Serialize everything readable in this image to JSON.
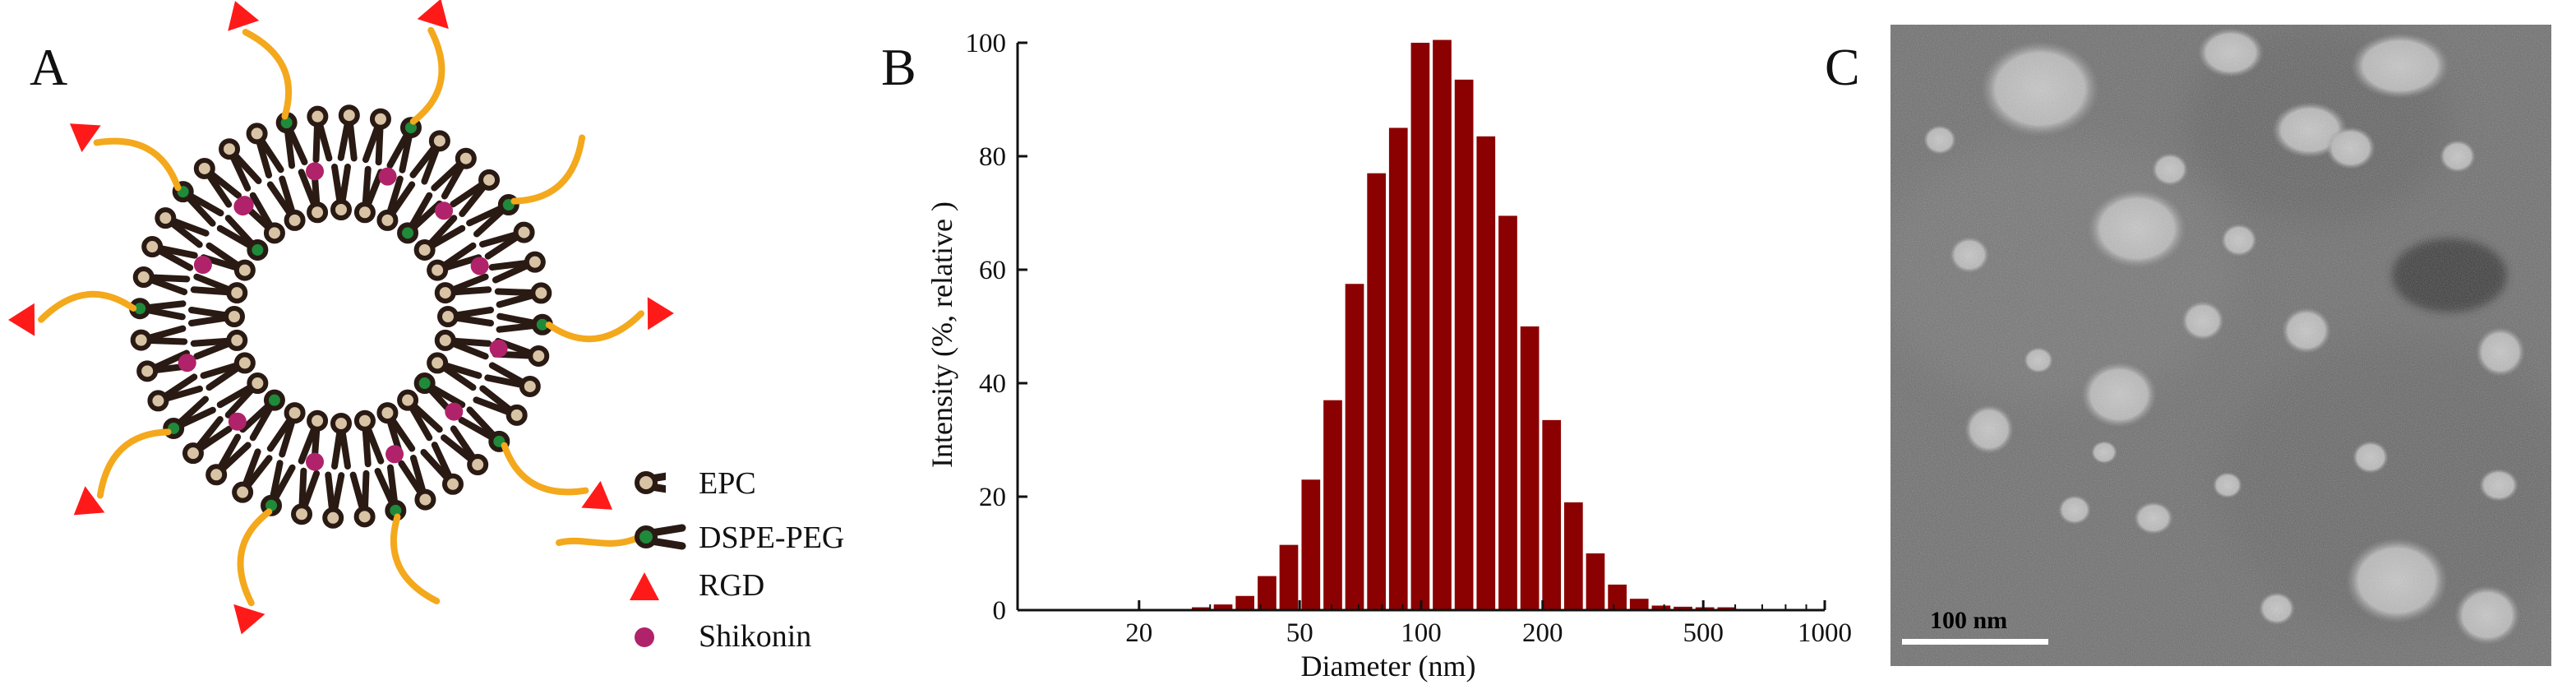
{
  "figure": {
    "panel_a": {
      "letter": "A"
    },
    "panel_b": {
      "letter": "B"
    },
    "panel_c": {
      "letter": "C"
    }
  },
  "legend": {
    "items": [
      {
        "label": "EPC",
        "icon": "epc-lipid-icon"
      },
      {
        "label": "DSPE-PEG",
        "icon": "dspe-peg-icon"
      },
      {
        "label": "RGD",
        "icon": "red-triangle-icon"
      },
      {
        "label": "Shikonin",
        "icon": "purple-dot-icon"
      }
    ]
  },
  "colors": {
    "lipid_dark": "#2a1a14",
    "lipid_head": "#d8c3a5",
    "peg_head": "#1f8a3a",
    "peg_chain": "#f4a81c",
    "rgd": "#ff1a1a",
    "shikonin": "#b0236a",
    "bar_fill": "#8b0000"
  },
  "chart_data": {
    "type": "bar",
    "xlabel": "Diameter (nm)",
    "ylabel": "Intensity (%, relative )",
    "x_scale": "log",
    "xlim": [
      10,
      1000
    ],
    "ylim": [
      0,
      100
    ],
    "x_ticks": [
      20,
      50,
      100,
      200,
      500,
      1000
    ],
    "y_ticks": [
      0,
      20,
      40,
      60,
      80,
      100
    ],
    "bin_centers": [
      28.5,
      32.3,
      36.6,
      41.5,
      47.0,
      53.3,
      60.4,
      68.4,
      77.5,
      87.8,
      99.5,
      112.7,
      127.7,
      144.7,
      164.0,
      185.8,
      210.5,
      238.5,
      270.2,
      306.2,
      346.9,
      393.1,
      445.4,
      504.6,
      571.8
    ],
    "values": [
      0.5,
      1.0,
      2.5,
      6,
      11.5,
      23,
      37,
      57.5,
      77,
      85,
      100,
      100.5,
      93.5,
      83.5,
      69.5,
      50,
      33.5,
      19,
      10,
      4.5,
      2,
      0.8,
      0.6,
      0.5,
      0.5
    ]
  },
  "micrograph": {
    "scale_bar_label": "100 nm"
  }
}
